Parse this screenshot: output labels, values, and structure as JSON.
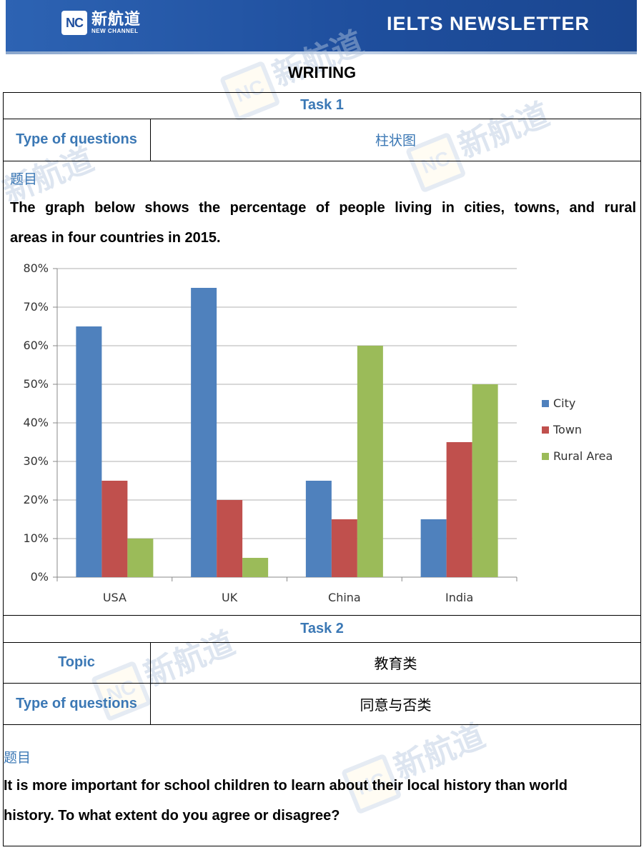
{
  "header": {
    "logo_mark": "NC",
    "logo_cn": "新航道",
    "logo_en": "NEW CHANNEL",
    "title": "IELTS NEWSLETTER"
  },
  "section_title": "WRITING",
  "task1": {
    "heading": "Task 1",
    "type_label": "Type of questions",
    "type_value": "柱状图",
    "prompt_label": "题目",
    "prompt_line1": "The graph below shows the percentage of people living in cities, towns, and rural",
    "prompt_line2": "areas in four countries in 2015."
  },
  "task2": {
    "heading": "Task 2",
    "topic_label": "Topic",
    "topic_value": "教育类",
    "type_label": "Type of questions",
    "type_value": "同意与否类",
    "prompt_label": "题目",
    "prompt_line1": "It is more important for school children to learn about their local history than world",
    "prompt_line2": "history. To what extent do you agree or disagree?"
  },
  "chart_data": {
    "type": "bar",
    "categories": [
      "USA",
      "UK",
      "China",
      "India"
    ],
    "series": [
      {
        "name": "City",
        "color": "#4f81bd",
        "values": [
          65,
          75,
          25,
          15
        ]
      },
      {
        "name": "Town",
        "color": "#c0504d",
        "values": [
          25,
          20,
          15,
          35
        ]
      },
      {
        "name": "Rural Area",
        "color": "#9bbb59",
        "values": [
          10,
          5,
          60,
          50
        ]
      }
    ],
    "yticks": [
      "0%",
      "10%",
      "20%",
      "30%",
      "40%",
      "50%",
      "60%",
      "70%",
      "80%"
    ],
    "ylim": [
      0,
      80
    ],
    "grid": true,
    "legend": "right"
  }
}
